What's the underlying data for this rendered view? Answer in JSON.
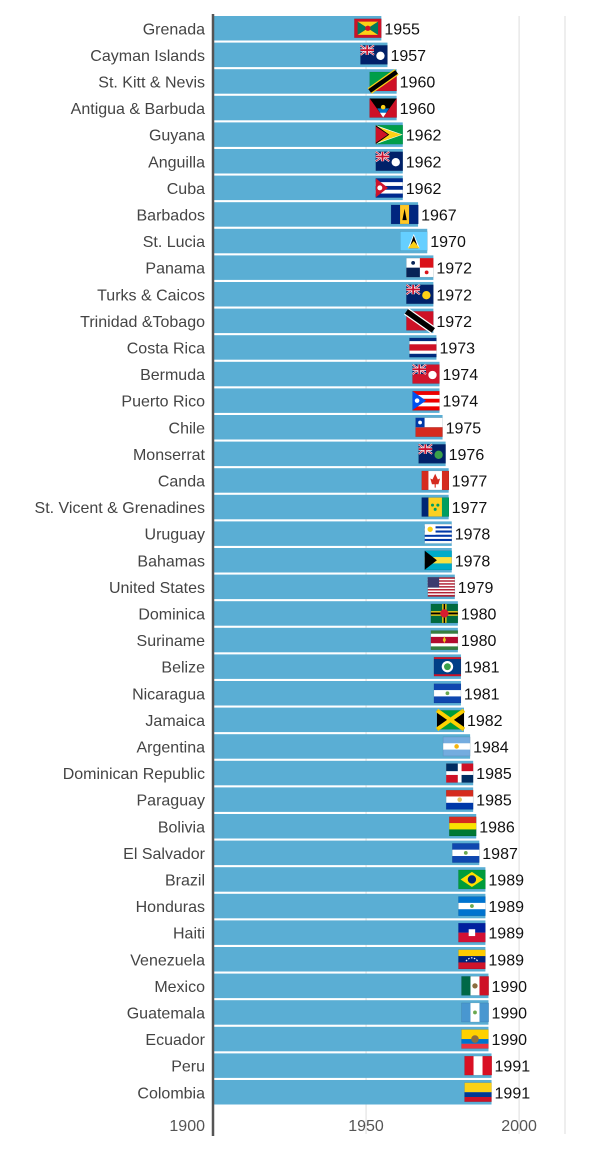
{
  "chart_data": {
    "type": "bar",
    "orientation": "horizontal",
    "title": "",
    "xlabel": "",
    "ylabel": "",
    "xlim": [
      1900,
      2015
    ],
    "x_ticks": [
      "1900",
      "1950",
      "2000"
    ],
    "grid": true,
    "legend": "none",
    "colors": {
      "bar": "#5aaed4",
      "axis": "#555555",
      "grid": "#dddddd"
    },
    "categories": [
      "Grenada",
      "Cayman Islands",
      "St. Kitt & Nevis",
      "Antigua & Barbuda",
      "Guyana",
      "Anguilla",
      "Cuba",
      "Barbados",
      "St. Lucia",
      "Panama",
      "Turks & Caicos",
      "Trinidad &Tobago",
      "Costa Rica",
      "Bermuda",
      "Puerto Rico",
      "Chile",
      "Monserrat",
      "Canda",
      "St. Vicent & Grenadines",
      "Uruguay",
      "Bahamas",
      "United States",
      "Dominica",
      "Suriname",
      "Belize",
      "Nicaragua",
      "Jamaica",
      "Argentina",
      "Dominican Republic",
      "Paraguay",
      "Bolivia",
      "El Salvador",
      "Brazil",
      "Honduras",
      "Haiti",
      "Venezuela",
      "Mexico",
      "Guatemala",
      "Ecuador",
      "Peru",
      "Colombia"
    ],
    "values": [
      1955,
      1957,
      1960,
      1960,
      1962,
      1962,
      1962,
      1967,
      1970,
      1972,
      1972,
      1972,
      1973,
      1974,
      1974,
      1975,
      1976,
      1977,
      1977,
      1978,
      1978,
      1979,
      1980,
      1980,
      1981,
      1981,
      1982,
      1984,
      1985,
      1985,
      1986,
      1987,
      1989,
      1989,
      1989,
      1989,
      1990,
      1990,
      1990,
      1991,
      1991
    ],
    "value_labels": [
      "1955",
      "1957",
      "1960",
      "1960",
      "1962",
      "1962",
      "1962",
      "1967",
      "1970",
      "1972",
      "1972",
      "1972",
      "1973",
      "1974",
      "1974",
      "1975",
      "1976",
      "1977",
      "1977",
      "1978",
      "1978",
      "1979",
      "1980",
      "1980",
      "1981",
      "1981",
      "1982",
      "1984",
      "1985",
      "1985",
      "1986",
      "1987",
      "1989",
      "1989",
      "1989",
      "1989",
      "1990",
      "1990",
      "1990",
      "1991",
      "1991"
    ],
    "flag_icons": [
      "grenada-flag",
      "cayman-islands-flag",
      "st-kitts-nevis-flag",
      "antigua-barbuda-flag",
      "guyana-flag",
      "anguilla-flag",
      "cuba-flag",
      "barbados-flag",
      "st-lucia-flag",
      "panama-flag",
      "turks-caicos-flag",
      "trinidad-tobago-flag",
      "costa-rica-flag",
      "bermuda-flag",
      "puerto-rico-flag",
      "chile-flag",
      "montserrat-flag",
      "canada-flag",
      "st-vincent-grenadines-flag",
      "uruguay-flag",
      "bahamas-flag",
      "united-states-flag",
      "dominica-flag",
      "suriname-flag",
      "belize-flag",
      "nicaragua-flag",
      "jamaica-flag",
      "argentina-flag",
      "dominican-republic-flag",
      "paraguay-flag",
      "bolivia-flag",
      "el-salvador-flag",
      "brazil-flag",
      "honduras-flag",
      "haiti-flag",
      "venezuela-flag",
      "mexico-flag",
      "guatemala-flag",
      "ecuador-flag",
      "peru-flag",
      "colombia-flag"
    ]
  }
}
